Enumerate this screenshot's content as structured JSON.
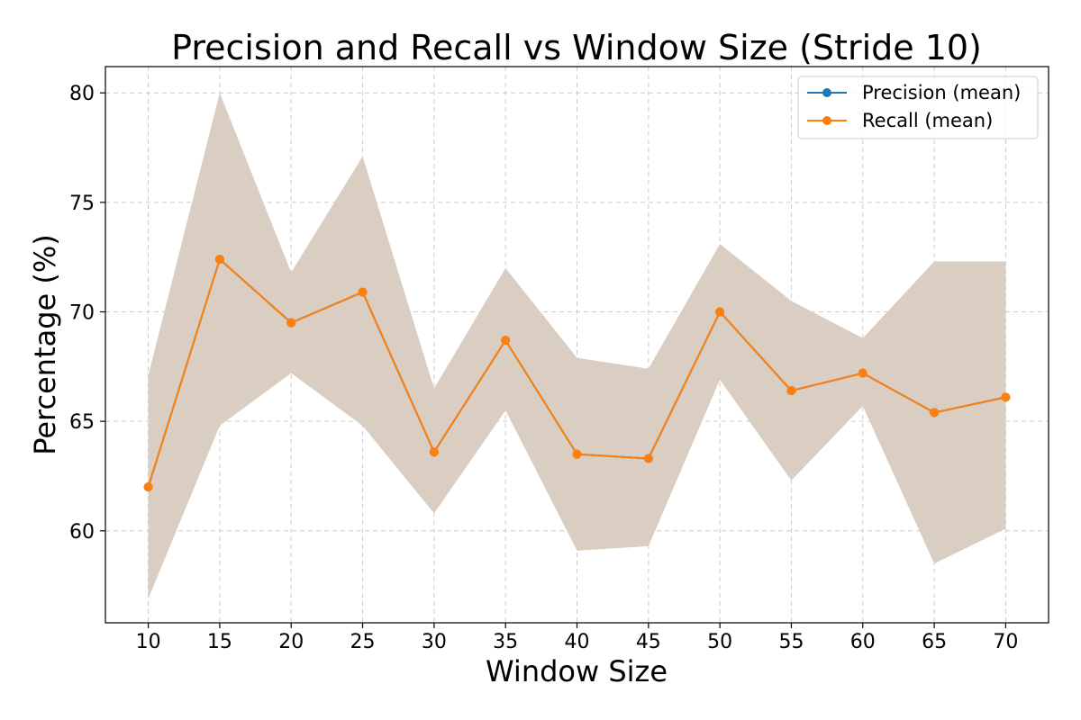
{
  "chart_data": {
    "type": "line",
    "title": "Precision and Recall vs Window Size (Stride 10)",
    "xlabel": "Window Size",
    "ylabel": "Percentage (%)",
    "x": [
      10,
      15,
      20,
      25,
      30,
      35,
      40,
      45,
      50,
      55,
      60,
      65,
      70
    ],
    "xlim": [
      7,
      73
    ],
    "ylim": [
      55.8,
      81.2
    ],
    "yticks": [
      60,
      65,
      70,
      75,
      80
    ],
    "grid": true,
    "legend_position": "top-right",
    "series": [
      {
        "name": "Precision (mean)",
        "color": "#1f77b4",
        "values": [
          62.0,
          72.4,
          69.5,
          70.9,
          63.6,
          68.7,
          63.5,
          63.3,
          70.0,
          66.4,
          67.2,
          65.4,
          66.1
        ],
        "band_lower": [
          56.9,
          64.8,
          67.2,
          64.8,
          60.8,
          65.5,
          59.1,
          59.3,
          66.9,
          62.3,
          65.7,
          58.5,
          60.1
        ],
        "band_upper": [
          67.1,
          80.0,
          71.8,
          77.1,
          66.5,
          72.0,
          67.9,
          67.4,
          73.1,
          70.5,
          68.8,
          72.3,
          72.3
        ]
      },
      {
        "name": "Recall (mean)",
        "color": "#ff7f0e",
        "values": [
          62.0,
          72.4,
          69.5,
          70.9,
          63.6,
          68.7,
          63.5,
          63.3,
          70.0,
          66.4,
          67.2,
          65.4,
          66.1
        ],
        "band_lower": [
          56.9,
          64.8,
          67.2,
          64.8,
          60.8,
          65.5,
          59.1,
          59.3,
          66.9,
          62.3,
          65.7,
          58.5,
          60.1
        ],
        "band_upper": [
          67.1,
          80.0,
          71.8,
          77.1,
          66.5,
          72.0,
          67.9,
          67.4,
          73.1,
          70.5,
          68.8,
          72.3,
          72.3
        ]
      }
    ],
    "band_color": "#dacdc2"
  }
}
